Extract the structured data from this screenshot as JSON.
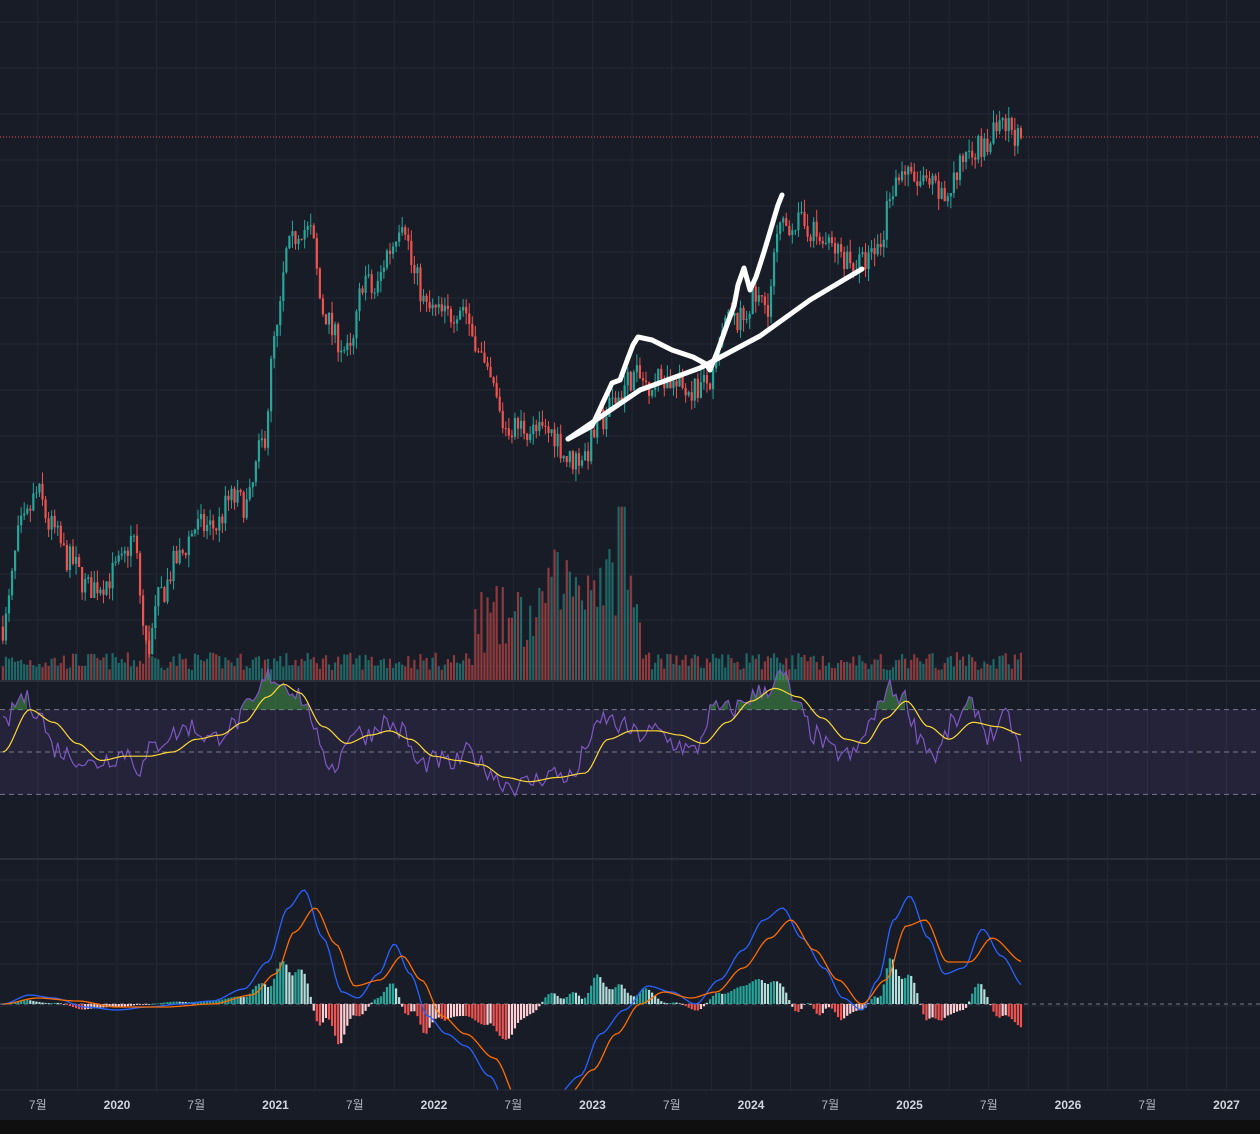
{
  "theme": {
    "background": "#181c27",
    "grid": "#232734",
    "up": "#26a69a",
    "down": "#ef5350",
    "rsi_line": "#7e57c2",
    "rsi_ma": "#fdd835",
    "rsi_band": "#7e57c2",
    "macd_line": "#2962ff",
    "signal_line": "#ff6d00",
    "hist_up": "#26a69a",
    "hist_down": "#ef5350",
    "drawing": "#ffffff",
    "price_line": "#ef5350",
    "axis_text": "#b2b5be"
  },
  "time_axis": {
    "labels": [
      {
        "text": "7월",
        "year": false,
        "t": 2019.5
      },
      {
        "text": "2020",
        "year": true,
        "t": 2020.0
      },
      {
        "text": "7월",
        "year": false,
        "t": 2020.5
      },
      {
        "text": "2021",
        "year": true,
        "t": 2021.0
      },
      {
        "text": "7월",
        "year": false,
        "t": 2021.5
      },
      {
        "text": "2022",
        "year": true,
        "t": 2022.0
      },
      {
        "text": "7월",
        "year": false,
        "t": 2022.5
      },
      {
        "text": "2023",
        "year": true,
        "t": 2023.0
      },
      {
        "text": "7월",
        "year": false,
        "t": 2023.5
      },
      {
        "text": "2024",
        "year": true,
        "t": 2024.0
      },
      {
        "text": "7월",
        "year": false,
        "t": 2024.5
      },
      {
        "text": "2025",
        "year": true,
        "t": 2025.0
      },
      {
        "text": "7월",
        "year": false,
        "t": 2025.5
      },
      {
        "text": "2026",
        "year": true,
        "t": 2026.0
      },
      {
        "text": "7월",
        "year": false,
        "t": 2026.5
      },
      {
        "text": "2027",
        "year": true,
        "t": 2027.0
      }
    ]
  },
  "chart_data": {
    "type": "line",
    "title": "",
    "x_range": [
      2019.28,
      2027.1
    ],
    "last_t": 2025.72,
    "price_level_line": 142,
    "price": {
      "description": "weekly candle closes (price-pane scale 0-100 from the pane's own range)",
      "ylim": [
        0,
        100
      ],
      "keyframes": [
        [
          2019.28,
          6
        ],
        [
          2019.4,
          24
        ],
        [
          2019.5,
          30
        ],
        [
          2019.58,
          24
        ],
        [
          2019.7,
          18
        ],
        [
          2019.82,
          13
        ],
        [
          2019.92,
          14
        ],
        [
          2020.02,
          17
        ],
        [
          2020.1,
          22
        ],
        [
          2020.19,
          2
        ],
        [
          2020.28,
          12
        ],
        [
          2020.38,
          18
        ],
        [
          2020.5,
          24
        ],
        [
          2020.62,
          24
        ],
        [
          2020.72,
          29
        ],
        [
          2020.82,
          28
        ],
        [
          2020.92,
          39
        ],
        [
          2021.0,
          58
        ],
        [
          2021.08,
          74
        ],
        [
          2021.16,
          78
        ],
        [
          2021.22,
          77
        ],
        [
          2021.3,
          63
        ],
        [
          2021.38,
          58
        ],
        [
          2021.47,
          55
        ],
        [
          2021.56,
          69
        ],
        [
          2021.62,
          66
        ],
        [
          2021.72,
          74
        ],
        [
          2021.8,
          80
        ],
        [
          2021.88,
          69
        ],
        [
          2021.96,
          63
        ],
        [
          2022.08,
          62
        ],
        [
          2022.18,
          64
        ],
        [
          2022.26,
          58
        ],
        [
          2022.35,
          50
        ],
        [
          2022.45,
          42
        ],
        [
          2022.55,
          42
        ],
        [
          2022.65,
          41
        ],
        [
          2022.75,
          41
        ],
        [
          2022.85,
          36
        ],
        [
          2022.95,
          37
        ],
        [
          2023.05,
          43
        ],
        [
          2023.15,
          47
        ],
        [
          2023.25,
          51
        ],
        [
          2023.35,
          50
        ],
        [
          2023.45,
          51
        ],
        [
          2023.55,
          49
        ],
        [
          2023.65,
          49
        ],
        [
          2023.75,
          50
        ],
        [
          2023.85,
          61
        ],
        [
          2023.93,
          61
        ],
        [
          2024.02,
          65
        ],
        [
          2024.1,
          64
        ],
        [
          2024.18,
          77
        ],
        [
          2024.26,
          79
        ],
        [
          2024.36,
          78
        ],
        [
          2024.46,
          75
        ],
        [
          2024.58,
          73
        ],
        [
          2024.66,
          71
        ],
        [
          2024.74,
          72
        ],
        [
          2024.82,
          75
        ],
        [
          2024.88,
          85
        ],
        [
          2024.95,
          88
        ],
        [
          2025.04,
          86
        ],
        [
          2025.14,
          85
        ],
        [
          2025.22,
          83
        ],
        [
          2025.29,
          87
        ],
        [
          2025.38,
          93
        ],
        [
          2025.47,
          92
        ],
        [
          2025.55,
          95
        ],
        [
          2025.64,
          96
        ],
        [
          2025.72,
          92
        ]
      ]
    },
    "volume_scale": "relative",
    "rsi": {
      "levels": [
        70,
        50,
        30
      ],
      "keyframes": [
        [
          2019.28,
          62
        ],
        [
          2019.4,
          76
        ],
        [
          2019.5,
          70
        ],
        [
          2019.6,
          52
        ],
        [
          2019.72,
          48
        ],
        [
          2019.84,
          44
        ],
        [
          2019.95,
          47
        ],
        [
          2020.06,
          50
        ],
        [
          2020.15,
          42
        ],
        [
          2020.22,
          52
        ],
        [
          2020.34,
          58
        ],
        [
          2020.46,
          62
        ],
        [
          2020.6,
          56
        ],
        [
          2020.72,
          62
        ],
        [
          2020.85,
          72
        ],
        [
          2020.96,
          86
        ],
        [
          2021.06,
          82
        ],
        [
          2021.14,
          78
        ],
        [
          2021.22,
          68
        ],
        [
          2021.3,
          46
        ],
        [
          2021.38,
          44
        ],
        [
          2021.48,
          60
        ],
        [
          2021.58,
          58
        ],
        [
          2021.68,
          64
        ],
        [
          2021.8,
          60
        ],
        [
          2021.9,
          44
        ],
        [
          2022.02,
          46
        ],
        [
          2022.12,
          44
        ],
        [
          2022.22,
          50
        ],
        [
          2022.34,
          42
        ],
        [
          2022.42,
          36
        ],
        [
          2022.52,
          34
        ],
        [
          2022.62,
          36
        ],
        [
          2022.74,
          40
        ],
        [
          2022.88,
          38
        ],
        [
          2022.98,
          56
        ],
        [
          2023.08,
          66
        ],
        [
          2023.18,
          62
        ],
        [
          2023.3,
          58
        ],
        [
          2023.4,
          60
        ],
        [
          2023.52,
          54
        ],
        [
          2023.64,
          50
        ],
        [
          2023.76,
          70
        ],
        [
          2023.88,
          70
        ],
        [
          2024.0,
          76
        ],
        [
          2024.1,
          80
        ],
        [
          2024.2,
          86
        ],
        [
          2024.3,
          70
        ],
        [
          2024.4,
          58
        ],
        [
          2024.52,
          50
        ],
        [
          2024.64,
          48
        ],
        [
          2024.76,
          64
        ],
        [
          2024.86,
          80
        ],
        [
          2024.96,
          76
        ],
        [
          2025.06,
          58
        ],
        [
          2025.16,
          48
        ],
        [
          2025.28,
          64
        ],
        [
          2025.4,
          72
        ],
        [
          2025.5,
          58
        ],
        [
          2025.62,
          66
        ],
        [
          2025.72,
          46
        ]
      ],
      "ma_keyframes": [
        [
          2019.28,
          50
        ],
        [
          2019.45,
          70
        ],
        [
          2019.6,
          64
        ],
        [
          2019.75,
          54
        ],
        [
          2019.9,
          46
        ],
        [
          2020.05,
          48
        ],
        [
          2020.2,
          48
        ],
        [
          2020.35,
          50
        ],
        [
          2020.5,
          56
        ],
        [
          2020.65,
          58
        ],
        [
          2020.8,
          64
        ],
        [
          2020.95,
          76
        ],
        [
          2021.05,
          82
        ],
        [
          2021.15,
          78
        ],
        [
          2021.3,
          62
        ],
        [
          2021.45,
          54
        ],
        [
          2021.6,
          58
        ],
        [
          2021.72,
          60
        ],
        [
          2021.85,
          56
        ],
        [
          2022.0,
          48
        ],
        [
          2022.15,
          46
        ],
        [
          2022.3,
          44
        ],
        [
          2022.45,
          38
        ],
        [
          2022.6,
          36
        ],
        [
          2022.78,
          38
        ],
        [
          2022.95,
          40
        ],
        [
          2023.1,
          56
        ],
        [
          2023.25,
          60
        ],
        [
          2023.4,
          60
        ],
        [
          2023.55,
          58
        ],
        [
          2023.7,
          54
        ],
        [
          2023.85,
          64
        ],
        [
          2024.0,
          74
        ],
        [
          2024.15,
          80
        ],
        [
          2024.3,
          76
        ],
        [
          2024.45,
          66
        ],
        [
          2024.6,
          56
        ],
        [
          2024.72,
          54
        ],
        [
          2024.85,
          66
        ],
        [
          2024.98,
          74
        ],
        [
          2025.12,
          62
        ],
        [
          2025.25,
          56
        ],
        [
          2025.4,
          64
        ],
        [
          2025.55,
          62
        ],
        [
          2025.72,
          58
        ]
      ]
    },
    "macd": {
      "zero_line": true,
      "macd_keyframes": [
        [
          2019.28,
          0
        ],
        [
          2019.45,
          3
        ],
        [
          2019.6,
          2
        ],
        [
          2019.8,
          -1
        ],
        [
          2020.0,
          -2
        ],
        [
          2020.2,
          -1
        ],
        [
          2020.4,
          0
        ],
        [
          2020.6,
          1
        ],
        [
          2020.8,
          5
        ],
        [
          2020.95,
          14
        ],
        [
          2021.08,
          32
        ],
        [
          2021.18,
          38
        ],
        [
          2021.3,
          22
        ],
        [
          2021.42,
          4
        ],
        [
          2021.52,
          2
        ],
        [
          2021.65,
          10
        ],
        [
          2021.75,
          20
        ],
        [
          2021.85,
          10
        ],
        [
          2021.96,
          -4
        ],
        [
          2022.08,
          -10
        ],
        [
          2022.2,
          -14
        ],
        [
          2022.35,
          -24
        ],
        [
          2022.5,
          -40
        ],
        [
          2022.62,
          -38
        ],
        [
          2022.78,
          -30
        ],
        [
          2022.92,
          -24
        ],
        [
          2023.05,
          -10
        ],
        [
          2023.2,
          -2
        ],
        [
          2023.35,
          6
        ],
        [
          2023.5,
          4
        ],
        [
          2023.65,
          0
        ],
        [
          2023.8,
          8
        ],
        [
          2023.95,
          18
        ],
        [
          2024.08,
          28
        ],
        [
          2024.2,
          32
        ],
        [
          2024.32,
          22
        ],
        [
          2024.46,
          12
        ],
        [
          2024.58,
          2
        ],
        [
          2024.7,
          -2
        ],
        [
          2024.8,
          8
        ],
        [
          2024.9,
          28
        ],
        [
          2025.0,
          36
        ],
        [
          2025.12,
          22
        ],
        [
          2025.22,
          10
        ],
        [
          2025.34,
          12
        ],
        [
          2025.46,
          25
        ],
        [
          2025.58,
          16
        ],
        [
          2025.72,
          6
        ]
      ],
      "signal_keyframes": [
        [
          2019.28,
          0
        ],
        [
          2019.5,
          2
        ],
        [
          2019.75,
          1
        ],
        [
          2020.0,
          -1
        ],
        [
          2020.3,
          -1
        ],
        [
          2020.6,
          0
        ],
        [
          2020.85,
          3
        ],
        [
          2021.0,
          10
        ],
        [
          2021.12,
          24
        ],
        [
          2021.25,
          32
        ],
        [
          2021.38,
          20
        ],
        [
          2021.5,
          6
        ],
        [
          2021.66,
          8
        ],
        [
          2021.8,
          16
        ],
        [
          2021.92,
          8
        ],
        [
          2022.05,
          -4
        ],
        [
          2022.2,
          -10
        ],
        [
          2022.38,
          -18
        ],
        [
          2022.55,
          -34
        ],
        [
          2022.7,
          -36
        ],
        [
          2022.85,
          -30
        ],
        [
          2023.0,
          -22
        ],
        [
          2023.15,
          -10
        ],
        [
          2023.3,
          0
        ],
        [
          2023.45,
          4
        ],
        [
          2023.62,
          2
        ],
        [
          2023.78,
          4
        ],
        [
          2023.95,
          12
        ],
        [
          2024.12,
          22
        ],
        [
          2024.25,
          28
        ],
        [
          2024.4,
          18
        ],
        [
          2024.55,
          8
        ],
        [
          2024.7,
          0
        ],
        [
          2024.85,
          8
        ],
        [
          2024.98,
          26
        ],
        [
          2025.1,
          28
        ],
        [
          2025.24,
          14
        ],
        [
          2025.38,
          14
        ],
        [
          2025.52,
          22
        ],
        [
          2025.72,
          14
        ]
      ]
    }
  }
}
